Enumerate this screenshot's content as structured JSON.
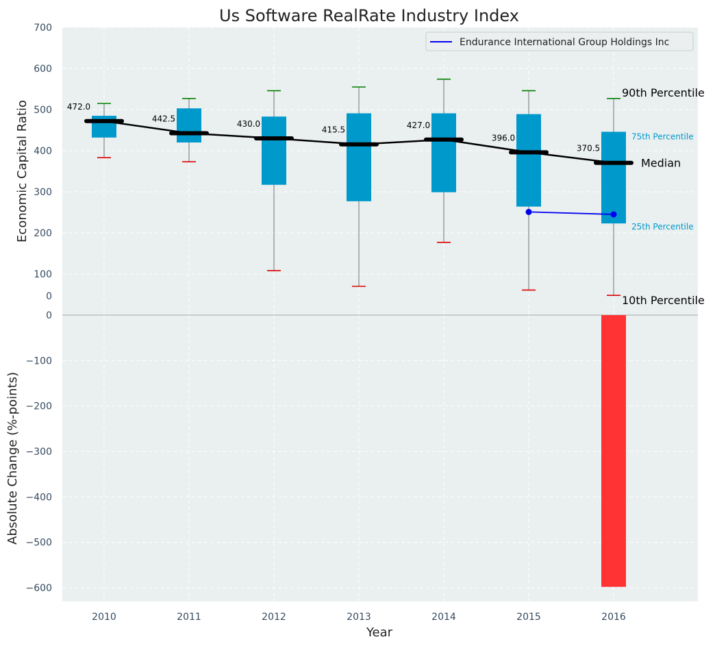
{
  "chart_data": {
    "type": "box",
    "title": "Us Software RealRate Industry Index",
    "x_label": "Year",
    "categories": [
      "2010",
      "2011",
      "2012",
      "2013",
      "2014",
      "2015",
      "2016"
    ],
    "top_panel": {
      "y_label": "Economic Capital Ratio",
      "y_range": [
        0,
        700
      ],
      "y_ticks": [
        "0",
        "100",
        "200",
        "300",
        "400",
        "500",
        "600",
        "700"
      ],
      "grid": true,
      "legend_position": "top-right",
      "boxes": [
        {
          "year": "2010",
          "p10": 383,
          "p25": 432,
          "median": 472.0,
          "p75": 485,
          "p90": 515,
          "median_label": "472.0"
        },
        {
          "year": "2011",
          "p10": 373,
          "p25": 420,
          "median": 442.5,
          "p75": 503,
          "p90": 527,
          "median_label": "442.5"
        },
        {
          "year": "2012",
          "p10": 108,
          "p25": 317,
          "median": 430.0,
          "p75": 483,
          "p90": 546,
          "median_label": "430.0"
        },
        {
          "year": "2013",
          "p10": 70,
          "p25": 277,
          "median": 415.5,
          "p75": 491,
          "p90": 555,
          "median_label": "415.5"
        },
        {
          "year": "2014",
          "p10": 177,
          "p25": 299,
          "median": 427.0,
          "p75": 491,
          "p90": 574,
          "median_label": "427.0"
        },
        {
          "year": "2015",
          "p10": 61,
          "p25": 264,
          "median": 396.0,
          "p75": 489,
          "p90": 546,
          "median_label": "396.0"
        },
        {
          "year": "2016",
          "p10": 48,
          "p25": 223,
          "median": 370.5,
          "p75": 446,
          "p90": 527,
          "median_label": "370.5"
        }
      ],
      "series": [
        {
          "name": "Endurance International Group Holdings Inc",
          "color": "#0000ee",
          "points": [
            {
              "x": "2015",
              "y": 251
            },
            {
              "x": "2016",
              "y": 245
            }
          ]
        }
      ],
      "annotations": {
        "p90": "90th Percentile",
        "p75": "75th Percentile",
        "median": "Median",
        "p25": "25th Percentile",
        "p10": "10th Percentile"
      },
      "colors": {
        "box": "#0099cc",
        "median": "#000000",
        "p90_cap": "#008000",
        "p10_cap": "#dd0000",
        "whisker": "#888888"
      }
    },
    "bottom_panel": {
      "type": "bar",
      "y_label": "Absolute Change (%-points)",
      "y_range": [
        -630,
        0
      ],
      "y_ticks": [
        "0",
        "−100",
        "−200",
        "−300",
        "−400",
        "−500",
        "−600"
      ],
      "grid": true,
      "bars": [
        {
          "year": "2016",
          "value": -598
        }
      ],
      "color": "#ff3333"
    }
  }
}
